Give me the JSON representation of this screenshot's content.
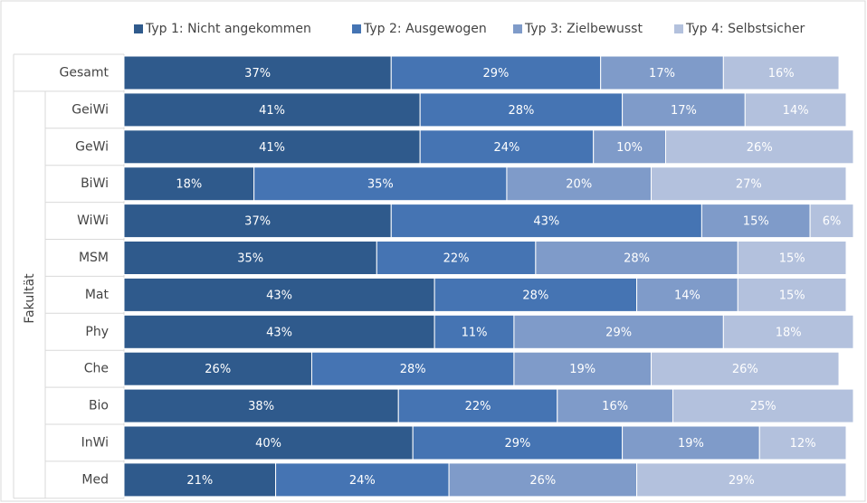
{
  "chart_data": {
    "type": "stacked_bar_horizontal",
    "y_label": "Fakultät",
    "categories": [
      "Gesamt",
      "GeiWi",
      "GeWi",
      "BiWi",
      "WiWi",
      "MSM",
      "Mat",
      "Phy",
      "Che",
      "Bio",
      "InWi",
      "Med"
    ],
    "xlim": [
      0,
      100
    ],
    "legend": "top",
    "series": [
      {
        "name": "Typ 1: Nicht angekommen",
        "color": "#2f5a8c",
        "values": [
          37,
          41,
          41,
          18,
          37,
          35,
          43,
          43,
          26,
          38,
          40,
          21
        ],
        "value_labels": [
          "37%",
          "41%",
          "41%",
          "18%",
          "37%",
          "35%",
          "43%",
          "43%",
          "26%",
          "38%",
          "40%",
          "21%"
        ]
      },
      {
        "name": "Typ 2: Ausgewogen",
        "color": "#4574b3",
        "values": [
          29,
          28,
          24,
          35,
          43,
          22,
          28,
          11,
          28,
          22,
          29,
          24
        ],
        "value_labels": [
          "29%",
          "28%",
          "24%",
          "35%",
          "43%",
          "22%",
          "28%",
          "11%",
          "28%",
          "22%",
          "29%",
          "24%"
        ]
      },
      {
        "name": "Typ 3: Zielbewusst",
        "color": "#7f9bc9",
        "values": [
          17,
          17,
          10,
          20,
          15,
          28,
          14,
          29,
          19,
          16,
          19,
          26
        ],
        "value_labels": [
          "17%",
          "17%",
          "10%",
          "20%",
          "15%",
          "28%",
          "14%",
          "29%",
          "19%",
          "16%",
          "19%",
          "26%"
        ]
      },
      {
        "name": "Typ 4: Selbstsicher",
        "color": "#b3c1dd",
        "values": [
          16,
          14,
          26,
          27,
          6,
          15,
          15,
          18,
          26,
          25,
          12,
          29
        ],
        "value_labels": [
          "16%",
          "14%",
          "26%",
          "27%",
          "6%",
          "15%",
          "15%",
          "18%",
          "26%",
          "25%",
          "12%",
          "29%"
        ]
      }
    ]
  }
}
